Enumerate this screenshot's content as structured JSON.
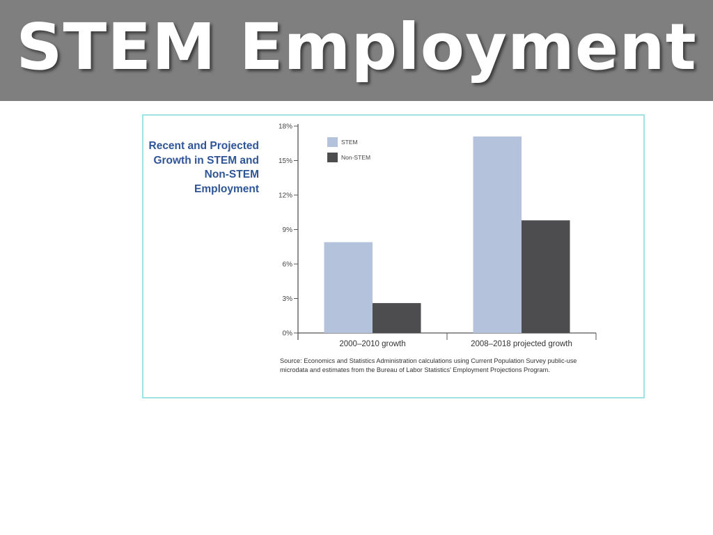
{
  "slide": {
    "title": "STEM Employment"
  },
  "chart_data": {
    "type": "bar",
    "title": "Recent and Projected Growth in STEM and Non-STEM Employment",
    "categories": [
      "2000–2010 growth",
      "2008–2018 projected growth"
    ],
    "series": [
      {
        "name": "STEM",
        "values": [
          7.9,
          17.1
        ],
        "color": "#b4c2dc"
      },
      {
        "name": "Non-STEM",
        "values": [
          2.6,
          9.8
        ],
        "color": "#4d4d4f"
      }
    ],
    "ylim": [
      0,
      18
    ],
    "yticks": [
      "0%",
      "3%",
      "6%",
      "9%",
      "12%",
      "15%",
      "18%"
    ],
    "ytick_values": [
      0,
      3,
      6,
      9,
      12,
      15,
      18
    ],
    "legend": "top-left",
    "grid": false,
    "source": "Source: Economics and Statistics Administration calculations using Current Population Survey public-use microdata and estimates from the Bureau of Labor Statistics' Employment Projections Program."
  }
}
